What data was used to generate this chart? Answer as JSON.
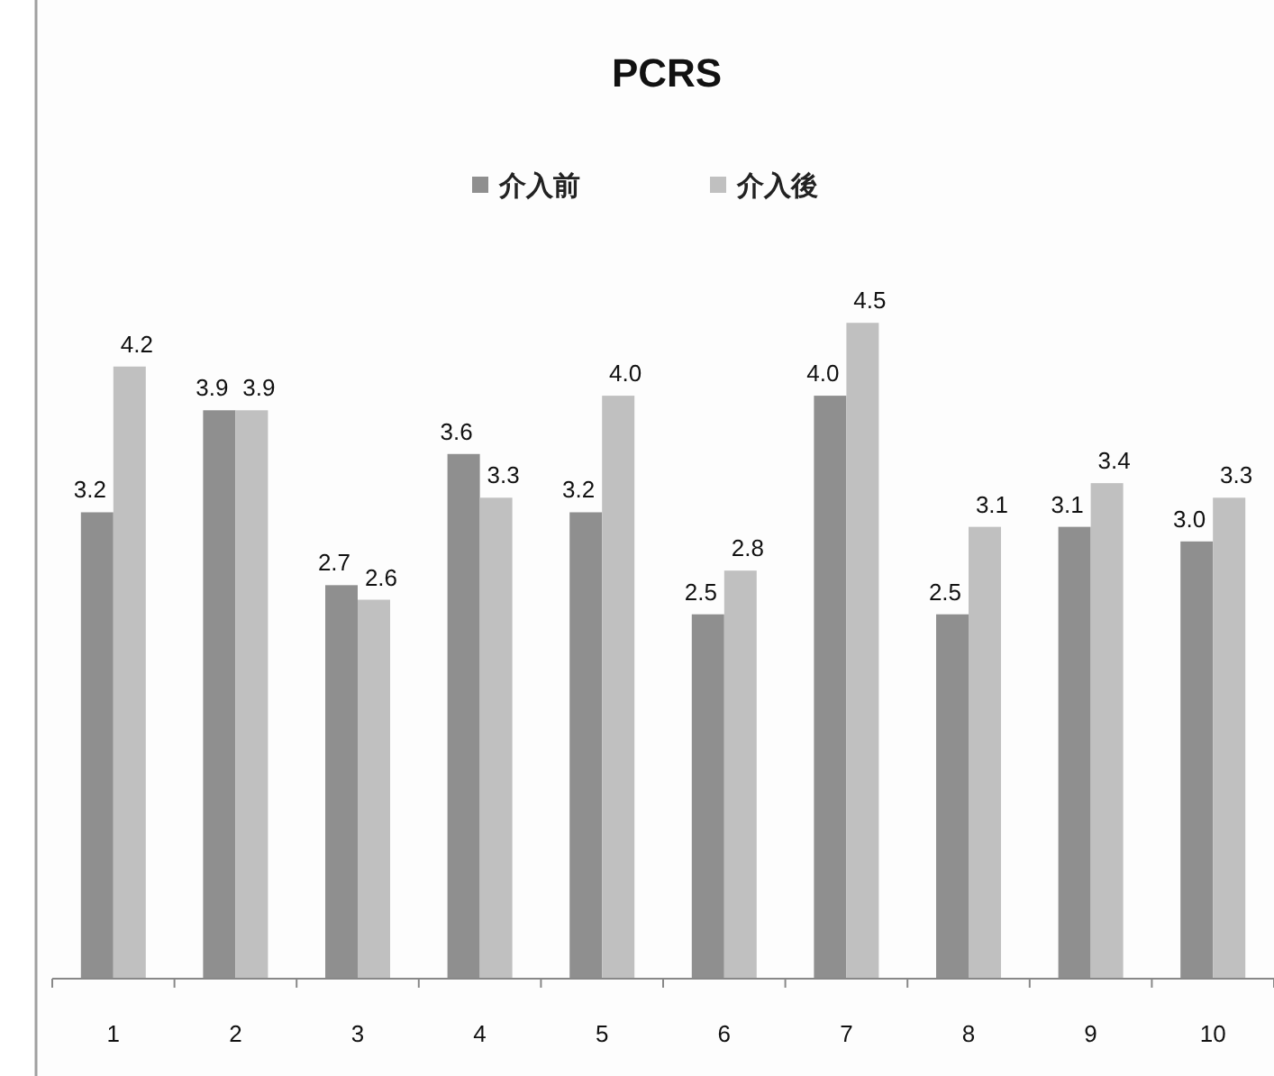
{
  "chart_data": {
    "type": "bar",
    "title": "PCRS",
    "categories": [
      "1",
      "2",
      "3",
      "4",
      "5",
      "6",
      "7",
      "8",
      "9",
      "10"
    ],
    "series": [
      {
        "name": "介入前",
        "color": "#8f8f8f",
        "values": [
          3.2,
          3.9,
          2.7,
          3.6,
          3.2,
          2.5,
          4.0,
          2.5,
          3.1,
          3.0
        ],
        "value_labels": [
          "3.2",
          "3.9",
          "2.7",
          "3.6",
          "3.2",
          "2.5",
          "4.0",
          "2.5",
          "3.1",
          "3.0"
        ]
      },
      {
        "name": "介入後",
        "color": "#c0c0c0",
        "values": [
          4.2,
          3.9,
          2.6,
          3.3,
          4.0,
          2.8,
          4.5,
          3.1,
          3.4,
          3.3
        ],
        "value_labels": [
          "4.2",
          "3.9",
          "2.6",
          "3.3",
          "4.0",
          "2.8",
          "4.5",
          "3.1",
          "3.4",
          "3.3"
        ]
      }
    ],
    "legend": "top"
  }
}
